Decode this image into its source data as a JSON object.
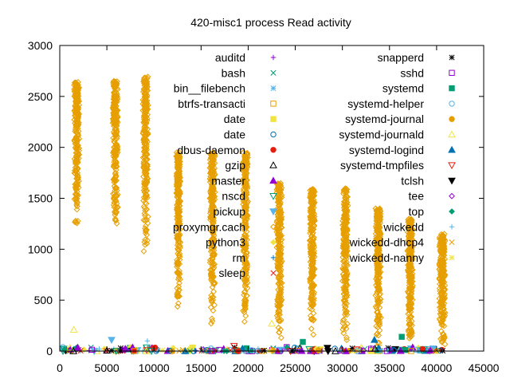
{
  "chart_data": {
    "type": "scatter",
    "title": "420-misc1 process Read activity",
    "xlabel": "",
    "ylabel": "",
    "xlim": [
      0,
      45000
    ],
    "ylim": [
      0,
      3000
    ],
    "x_ticks": [
      0,
      5000,
      10000,
      15000,
      20000,
      25000,
      30000,
      35000,
      40000,
      45000
    ],
    "y_ticks": [
      0,
      500,
      1000,
      1500,
      2000,
      2500,
      3000
    ],
    "grid": false,
    "legend_placement": "top (two columns, inside plot)",
    "legend": [
      {
        "name": "auditd",
        "color": "#9400d3",
        "marker": "plus"
      },
      {
        "name": "bash",
        "color": "#009e73",
        "marker": "x"
      },
      {
        "name": "bin__filebench",
        "color": "#56b4e9",
        "marker": "star"
      },
      {
        "name": "btrfs-transacti",
        "color": "#e69f00",
        "marker": "square-open"
      },
      {
        "name": "date",
        "color": "#f0e442",
        "marker": "square-filled"
      },
      {
        "name": "date",
        "color": "#0072b2",
        "marker": "circle-open"
      },
      {
        "name": "dbus-daemon",
        "color": "#e51e10",
        "marker": "circle-filled"
      },
      {
        "name": "gzip",
        "color": "#000000",
        "marker": "triangle-open"
      },
      {
        "name": "master",
        "color": "#9400d3",
        "marker": "triangle-filled"
      },
      {
        "name": "nscd",
        "color": "#009e73",
        "marker": "triangle-down-open"
      },
      {
        "name": "pickup",
        "color": "#56b4e9",
        "marker": "triangle-down-filled"
      },
      {
        "name": "proxymgr.cach",
        "color": "#e69f00",
        "marker": "diamond-open"
      },
      {
        "name": "python3",
        "color": "#f0e442",
        "marker": "diamond-filled"
      },
      {
        "name": "rm",
        "color": "#0072b2",
        "marker": "plus"
      },
      {
        "name": "sleep",
        "color": "#e51e10",
        "marker": "x"
      },
      {
        "name": "snapperd",
        "color": "#000000",
        "marker": "star"
      },
      {
        "name": "sshd",
        "color": "#9400d3",
        "marker": "square-open"
      },
      {
        "name": "systemd",
        "color": "#009e73",
        "marker": "square-filled"
      },
      {
        "name": "systemd-helper",
        "color": "#56b4e9",
        "marker": "circle-open"
      },
      {
        "name": "systemd-journal",
        "color": "#e69f00",
        "marker": "circle-filled"
      },
      {
        "name": "systemd-journald",
        "color": "#f0e442",
        "marker": "triangle-open"
      },
      {
        "name": "systemd-logind",
        "color": "#0072b2",
        "marker": "triangle-filled"
      },
      {
        "name": "systemd-tmpfiles",
        "color": "#e51e10",
        "marker": "triangle-down-open"
      },
      {
        "name": "tclsh",
        "color": "#000000",
        "marker": "triangle-down-filled"
      },
      {
        "name": "tee",
        "color": "#9400d3",
        "marker": "diamond-open"
      },
      {
        "name": "top",
        "color": "#009e73",
        "marker": "diamond-filled"
      },
      {
        "name": "wickedd",
        "color": "#56b4e9",
        "marker": "plus"
      },
      {
        "name": "wickedd-dhcp4",
        "color": "#e69f00",
        "marker": "x"
      },
      {
        "name": "wickedd-nanny",
        "color": "#f0e442",
        "marker": "star"
      }
    ],
    "dense_series": {
      "name": "proxymgr.cach",
      "color": "#e69f00",
      "marker": "diamond-open",
      "clusters": [
        {
          "x": 1800,
          "x_spread": 300,
          "y_min": 1200,
          "y_max": 2650
        },
        {
          "x": 5900,
          "x_spread": 300,
          "y_min": 1200,
          "y_max": 2650
        },
        {
          "x": 9100,
          "x_spread": 300,
          "y_min": 950,
          "y_max": 2700
        },
        {
          "x": 12600,
          "x_spread": 250,
          "y_min": 400,
          "y_max": 1950
        },
        {
          "x": 16200,
          "x_spread": 300,
          "y_min": 200,
          "y_max": 1950
        },
        {
          "x": 19700,
          "x_spread": 300,
          "y_min": 200,
          "y_max": 1950
        },
        {
          "x": 23300,
          "x_spread": 300,
          "y_min": 100,
          "y_max": 1650
        },
        {
          "x": 26800,
          "x_spread": 300,
          "y_min": 100,
          "y_max": 1600
        },
        {
          "x": 30300,
          "x_spread": 300,
          "y_min": 50,
          "y_max": 1600
        },
        {
          "x": 33800,
          "x_spread": 300,
          "y_min": 30,
          "y_max": 1400
        },
        {
          "x": 37200,
          "x_spread": 300,
          "y_min": 30,
          "y_max": 1300
        },
        {
          "x": 40600,
          "x_spread": 350,
          "y_min": 20,
          "y_max": 1150
        }
      ]
    },
    "noted_points": [
      {
        "series": "systemd-journald",
        "x": 1500,
        "y": 210
      },
      {
        "series": "pickup",
        "x": 5500,
        "y": 110
      },
      {
        "series": "wickedd",
        "x": 9300,
        "y": 100
      },
      {
        "series": "systemd-logind",
        "x": 33400,
        "y": 110
      },
      {
        "series": "systemd",
        "x": 36300,
        "y": 140
      },
      {
        "series": "systemd",
        "x": 25800,
        "y": 90
      },
      {
        "series": "systemd-tmpfiles",
        "x": 18500,
        "y": 50
      },
      {
        "series": "systemd-journald",
        "x": 22500,
        "y": 270
      },
      {
        "series": "gzip",
        "x": 5000,
        "y": 5
      },
      {
        "series": "top",
        "x": 500,
        "y": 15
      }
    ]
  }
}
